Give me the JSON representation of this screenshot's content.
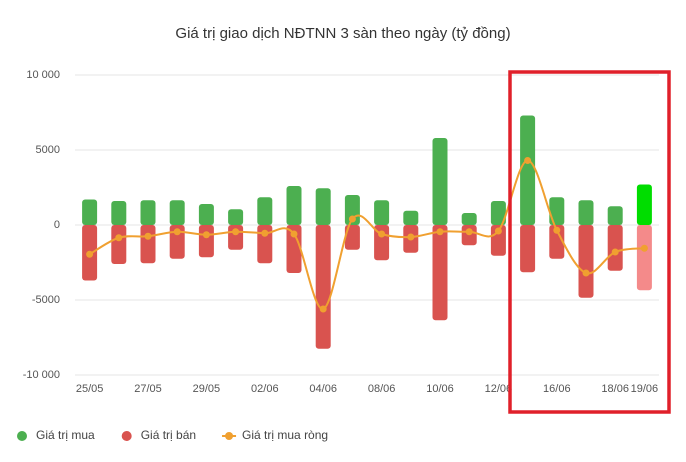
{
  "chart_data": {
    "type": "bar-line",
    "title": "Giá trị giao dịch NĐTNN 3 sàn theo ngày (tỷ đồng)",
    "categories": [
      "25/05",
      null,
      "27/05",
      null,
      "29/05",
      null,
      "02/06",
      null,
      "04/06",
      null,
      "08/06",
      null,
      "10/06",
      null,
      "12/06",
      null,
      "16/06",
      null,
      "18/06",
      "19/06"
    ],
    "series": [
      {
        "name": "Giá trị mua",
        "type": "bar",
        "color": "#4caf50",
        "colors": [
          "#4caf50",
          "#4caf50",
          "#4caf50",
          "#4caf50",
          "#4caf50",
          "#4caf50",
          "#4caf50",
          "#4caf50",
          "#4caf50",
          "#4caf50",
          "#4caf50",
          "#4caf50",
          "#4caf50",
          "#4caf50",
          "#4caf50",
          "#4caf50",
          "#4caf50",
          "#4caf50",
          "#4caf50",
          "#00dd00"
        ],
        "values": [
          1700,
          1600,
          1650,
          1650,
          1400,
          1050,
          1850,
          2600,
          2450,
          2000,
          1650,
          950,
          5800,
          800,
          1600,
          7300,
          1850,
          1650,
          1250,
          2700
        ]
      },
      {
        "name": "Giá trị bán",
        "type": "bar",
        "color": "#d9534f",
        "colors": [
          "#d9534f",
          "#d9534f",
          "#d9534f",
          "#d9534f",
          "#d9534f",
          "#d9534f",
          "#d9534f",
          "#d9534f",
          "#d9534f",
          "#d9534f",
          "#d9534f",
          "#d9534f",
          "#d9534f",
          "#d9534f",
          "#d9534f",
          "#d9534f",
          "#d9534f",
          "#d9534f",
          "#d9534f",
          "#f48a8a"
        ],
        "values": [
          -3700,
          -2600,
          -2550,
          -2250,
          -2150,
          -1650,
          -2550,
          -3200,
          -8250,
          -1650,
          -2350,
          -1850,
          -6350,
          -1350,
          -2050,
          -3150,
          -2250,
          -4850,
          -3050,
          -4350
        ]
      },
      {
        "name": "Giá trị mua ròng",
        "type": "line",
        "color": "#f0a030",
        "values": [
          -1950,
          -850,
          -750,
          -450,
          -650,
          -450,
          -550,
          -600,
          -5600,
          400,
          -600,
          -800,
          -450,
          -450,
          -400,
          4300,
          -350,
          -3200,
          -1800,
          -1550
        ]
      }
    ],
    "ylim": [
      -10000,
      10000
    ],
    "yticks": [
      {
        "value": 10000,
        "label": "10 000"
      },
      5000,
      0,
      -5000,
      {
        "value": -10000,
        "label": "-10 000"
      }
    ],
    "grid": true,
    "legend": "bottom-left"
  }
}
